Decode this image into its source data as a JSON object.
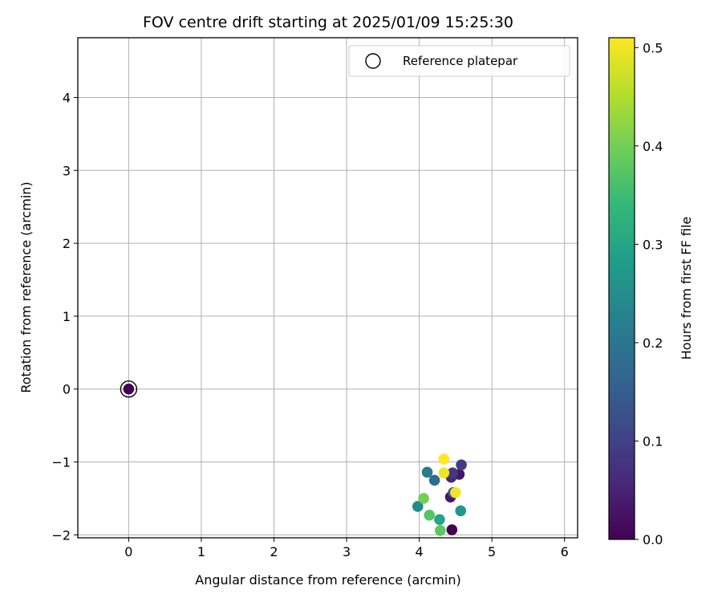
{
  "chart_data": {
    "type": "scatter",
    "title": "FOV centre drift starting at 2025/01/09 15:25:30",
    "xlabel": "Angular distance from reference (arcmin)",
    "ylabel": "Rotation from reference (arcmin)",
    "xlim": [
      -0.7,
      6.18
    ],
    "ylim": [
      -2.04,
      4.82
    ],
    "xticks": [
      0,
      1,
      2,
      3,
      4,
      5,
      6
    ],
    "yticks": [
      -2,
      -1,
      0,
      1,
      2,
      3,
      4
    ],
    "xtick_labels": [
      "0",
      "1",
      "2",
      "3",
      "4",
      "5",
      "6"
    ],
    "ytick_labels": [
      "−2",
      "−1",
      "0",
      "1",
      "2",
      "3",
      "4"
    ],
    "grid": true,
    "legend": {
      "placement": "top-right",
      "entries": [
        {
          "label": "Reference platepar",
          "marker": "hollow-circle",
          "color": "#000000"
        }
      ]
    },
    "reference_point": {
      "x": 0,
      "y": 0
    },
    "colorbar": {
      "label": "Hours from first FF file",
      "colormap": "viridis",
      "range": [
        0,
        0.51
      ],
      "ticks": [
        0.0,
        0.1,
        0.2,
        0.3,
        0.4,
        0.5
      ],
      "tick_labels": [
        "0.0",
        "0.1",
        "0.2",
        "0.3",
        "0.4",
        "0.5"
      ],
      "stops": [
        "#440154",
        "#482878",
        "#3e4989",
        "#31688e",
        "#26828e",
        "#1f9e89",
        "#35b779",
        "#6ece58",
        "#b5de2b",
        "#fde725"
      ]
    },
    "points": [
      {
        "x": 0.0,
        "y": 0.0,
        "c": 0.0
      },
      {
        "x": 4.45,
        "y": -1.93,
        "c": 0.0
      },
      {
        "x": 4.55,
        "y": -1.17,
        "c": 0.03
      },
      {
        "x": 4.43,
        "y": -1.48,
        "c": 0.03
      },
      {
        "x": 4.44,
        "y": -1.21,
        "c": 0.06
      },
      {
        "x": 4.46,
        "y": -1.15,
        "c": 0.08
      },
      {
        "x": 4.58,
        "y": -1.04,
        "c": 0.09
      },
      {
        "x": 4.47,
        "y": -1.42,
        "c": 0.13
      },
      {
        "x": 4.21,
        "y": -1.25,
        "c": 0.18
      },
      {
        "x": 4.11,
        "y": -1.14,
        "c": 0.21
      },
      {
        "x": 3.98,
        "y": -1.61,
        "c": 0.24
      },
      {
        "x": 4.57,
        "y": -1.67,
        "c": 0.27
      },
      {
        "x": 4.28,
        "y": -1.79,
        "c": 0.3
      },
      {
        "x": 4.14,
        "y": -1.73,
        "c": 0.37
      },
      {
        "x": 4.06,
        "y": -1.5,
        "c": 0.4
      },
      {
        "x": 4.29,
        "y": -1.94,
        "c": 0.38
      },
      {
        "x": 4.34,
        "y": -0.96,
        "c": 0.51
      },
      {
        "x": 4.34,
        "y": -1.15,
        "c": 0.5
      },
      {
        "x": 4.5,
        "y": -1.42,
        "c": 0.5
      }
    ]
  }
}
